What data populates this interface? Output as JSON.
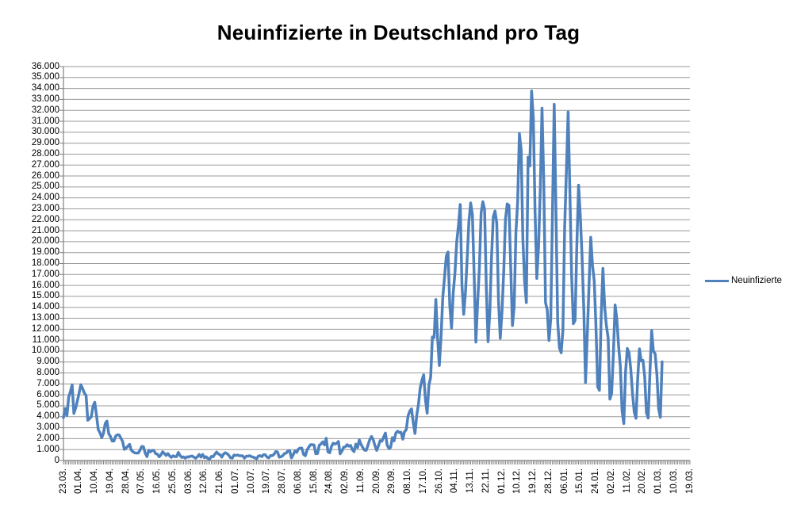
{
  "chart_data": {
    "type": "line",
    "title": "Neuinfizierte in Deutschland pro Tag",
    "grid": true,
    "legend_position": "right",
    "colors": {
      "line": "#4F81BD",
      "gridline": "#9A9A9A",
      "axis": "#808080",
      "text": "#000000",
      "background": "#FFFFFF"
    },
    "y_axis": {
      "min": 0,
      "max": 36000,
      "step": 1000,
      "tick_labels": [
        "36.000",
        "35.000",
        "34.000",
        "33.000",
        "32.000",
        "31.000",
        "30.000",
        "29.000",
        "28.000",
        "27.000",
        "26.000",
        "25.000",
        "24.000",
        "23.000",
        "22.000",
        "21.000",
        "20.000",
        "19.000",
        "18.000",
        "17.000",
        "16.000",
        "15.000",
        "14.000",
        "13.000",
        "12.000",
        "11.000",
        "10.000",
        "9.000",
        "8.000",
        "7.000",
        "6.000",
        "5.000",
        "4.000",
        "3.000",
        "2.000",
        "1.000",
        "0"
      ]
    },
    "x_axis": {
      "tick_labels": [
        "23.03.",
        "01.04.",
        "10.04.",
        "19.04.",
        "28.04.",
        "07.05.",
        "16.05.",
        "25.05.",
        "03.06.",
        "12.06.",
        "21.06.",
        "01.07.",
        "10.07.",
        "19.07.",
        "28.07.",
        "06.08.",
        "15.08.",
        "24.08.",
        "02.09.",
        "11.09.",
        "20.09.",
        "29.09.",
        "08.10.",
        "17.10.",
        "26.10.",
        "04.11.",
        "13.11.",
        "22.11.",
        "01.12.",
        "10.12.",
        "19.12.",
        "28.12.",
        "06.01.",
        "15.01.",
        "24.01.",
        "02.02.",
        "11.02.",
        "20.02.",
        "01.03.",
        "10.03.",
        "19.03."
      ],
      "days_per_tick": 9,
      "total_day_slots": 360
    },
    "series": [
      {
        "name": "Neuinfizierte",
        "color": "#4F81BD",
        "first_point_label": "23.03.",
        "values": [
          3930,
          4751,
          4118,
          5780,
          6294,
          6922,
          4300,
          4790,
          5453,
          6156,
          6922,
          6582,
          6174,
          5936,
          3677,
          3834,
          4003,
          4974,
          5323,
          4133,
          2821,
          2537,
          2082,
          2486,
          3380,
          3609,
          2458,
          2202,
          1775,
          1785,
          2237,
          2352,
          2337,
          2055,
          1737,
          1018,
          1144,
          1304,
          1478,
          945,
          793,
          697,
          679,
          685,
          947,
          1284,
          1251,
          667,
          357,
          933,
          798,
          933,
          913,
          620,
          583,
          342,
          513,
          797,
          639,
          460,
          638,
          431,
          289,
          432,
          362,
          353,
          741,
          460,
          286,
          333,
          213,
          342,
          318,
          394,
          407,
          301,
          214,
          350,
          555,
          318,
          555,
          258,
          348,
          192,
          137,
          378,
          345,
          580,
          770,
          601,
          537,
          305,
          587,
          712,
          630,
          477,
          256,
          219,
          498,
          466,
          503,
          446,
          436,
          422,
          219,
          390,
          397,
          442,
          356,
          305,
          248,
          159,
          412,
          444,
          351,
          534,
          529,
          305,
          249,
          454,
          445,
          569,
          815,
          781,
          305,
          340,
          445,
          633,
          684,
          870,
          902,
          240,
          509,
          879,
          741,
          1045,
          1147,
          1122,
          555,
          436,
          966,
          1226,
          1445,
          1449,
          1415,
          625,
          633,
          1390,
          1510,
          1707,
          1427,
          2034,
          782,
          711,
          1278,
          1576,
          1507,
          1571,
          1737,
          610,
          852,
          1218,
          1256,
          1453,
          1311,
          1378,
          988,
          814,
          1499,
          1176,
          1892,
          1484,
          1176,
          948,
          927,
          1407,
          1901,
          2194,
          1916,
          1345,
          922,
          1345,
          1821,
          1769,
          2143,
          2507,
          1411,
          1111,
          1192,
          2089,
          1798,
          2503,
          2673,
          2563,
          2579,
          1952,
          2639,
          2828,
          4058,
          4516,
          4721,
          3483,
          2467,
          4122,
          5132,
          6638,
          7334,
          7830,
          5587,
          4325,
          6868,
          7595,
          11287,
          11242,
          14714,
          11176,
          8685,
          11409,
          14964,
          16774,
          18681,
          19059,
          14177,
          12097,
          15352,
          17214,
          19990,
          21506,
          23399,
          16017,
          13363,
          15332,
          18487,
          21866,
          23542,
          22461,
          16947,
          10824,
          14419,
          17561,
          22609,
          23648,
          22964,
          15741,
          10864,
          13554,
          18633,
          22268,
          22806,
          21695,
          14611,
          11169,
          13604,
          17270,
          22046,
          23449,
          23318,
          17767,
          12332,
          14054,
          20815,
          23679,
          29875,
          28438,
          20200,
          16362,
          14432,
          27728,
          26923,
          33777,
          31300,
          22771,
          16643,
          19528,
          24740,
          32195,
          25533,
          14455,
          13755,
          10976,
          12892,
          22459,
          32552,
          22924,
          12690,
          10315,
          9847,
          11897,
          21237,
          26391,
          31849,
          24694,
          16946,
          12497,
          12802,
          19600,
          25164,
          22368,
          18678,
          13882,
          7141,
          11369,
          15974,
          20398,
          17862,
          16417,
          12257,
          6729,
          6412,
          13202,
          17553,
          14022,
          12321,
          11192,
          5608,
          6114,
          9705,
          14211,
          12908,
          10485,
          8616,
          4535,
          3379,
          8072,
          10237,
          9860,
          8354,
          6114,
          4426,
          3856,
          7556,
          10207,
          9113,
          9164,
          7676,
          4369,
          3883,
          8007,
          11869,
          9997,
          9762,
          7890,
          4732,
          3943,
          9019
        ]
      }
    ]
  }
}
